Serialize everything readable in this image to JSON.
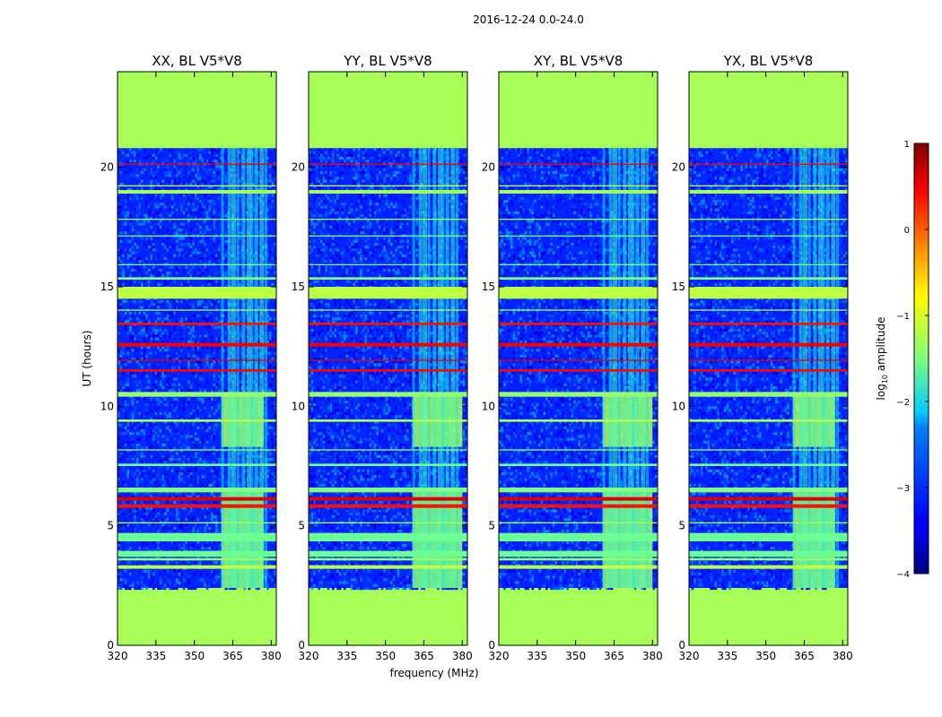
{
  "chart_data": {
    "type": "heatmap",
    "suptitle": "2016-12-24 0.0-24.0",
    "xlabel": "frequency (MHz)",
    "ylabel": "UT (hours)",
    "xlim": [
      320,
      382
    ],
    "ylim": [
      0,
      24
    ],
    "xticks": [
      320,
      335,
      350,
      365,
      380
    ],
    "yticks": [
      0,
      5,
      10,
      15,
      20
    ],
    "data_ut_range": [
      2.4,
      20.8
    ],
    "colorbar": {
      "label_prefix": "log",
      "label_sub": "10",
      "label_suffix": " amplitude",
      "range": [
        -4,
        1
      ],
      "ticks": [
        1,
        0,
        -1,
        -2,
        -3,
        -4
      ],
      "tick_labels": [
        "1",
        "0",
        "−1",
        "−2",
        "−3",
        "−4"
      ],
      "colormap": "jet"
    },
    "no_data_log_value": -1.3,
    "panels": [
      {
        "title": "XX, BL V5*V8",
        "rfi_block_edge_mhz": 360.5,
        "rfi_block_top_mhz": 377
      },
      {
        "title": "YY, BL V5*V8",
        "rfi_block_edge_mhz": 360.5,
        "rfi_block_top_mhz": 380
      },
      {
        "title": "XY, BL V5*V8",
        "rfi_block_edge_mhz": 360.5,
        "rfi_block_top_mhz": 380
      },
      {
        "title": "YX, BL V5*V8",
        "rfi_block_edge_mhz": 360.5,
        "rfi_block_top_mhz": 377
      }
    ],
    "rfi_columns_mhz": [
      361,
      363.5,
      365,
      367,
      369,
      371,
      372.5,
      374,
      376,
      378
    ],
    "flagged_time_bands": [
      {
        "t0": 3.2,
        "t1": 3.35,
        "log": -1.2
      },
      {
        "t0": 3.55,
        "t1": 3.65,
        "log": -1.4
      },
      {
        "t0": 3.7,
        "t1": 3.95,
        "log": -1.6
      },
      {
        "t0": 4.35,
        "t1": 4.7,
        "log": -1.6
      },
      {
        "t0": 5.1,
        "t1": 5.15,
        "log": -1.3
      },
      {
        "t0": 5.75,
        "t1": 5.9,
        "log": 0.3
      },
      {
        "t0": 6.05,
        "t1": 6.2,
        "log": 0.5
      },
      {
        "t0": 6.4,
        "t1": 6.6,
        "log": -1.5
      },
      {
        "t0": 7.5,
        "t1": 7.6,
        "log": -1.6
      },
      {
        "t0": 8.15,
        "t1": 8.2,
        "log": -1.4
      },
      {
        "t0": 9.35,
        "t1": 9.45,
        "log": -1.3
      },
      {
        "t0": 10.4,
        "t1": 10.6,
        "log": -1.4
      },
      {
        "t0": 11.45,
        "t1": 11.55,
        "log": 0.35
      },
      {
        "t0": 11.9,
        "t1": 11.95,
        "log": 0.5
      },
      {
        "t0": 12.5,
        "t1": 12.65,
        "log": 0.4
      },
      {
        "t0": 13.4,
        "t1": 13.5,
        "log": 0.3
      },
      {
        "t0": 14.0,
        "t1": 14.05,
        "log": -1.3
      },
      {
        "t0": 14.5,
        "t1": 15.0,
        "log": -1.2
      },
      {
        "t0": 15.3,
        "t1": 15.4,
        "log": -1.5
      },
      {
        "t0": 15.9,
        "t1": 15.95,
        "log": -1.6
      },
      {
        "t0": 17.1,
        "t1": 17.15,
        "log": -1.6
      },
      {
        "t0": 17.8,
        "t1": 17.85,
        "log": -1.4
      },
      {
        "t0": 18.9,
        "t1": 19.05,
        "log": -1.3
      },
      {
        "t0": 19.2,
        "t1": 19.25,
        "log": -1.2
      },
      {
        "t0": 20.1,
        "t1": 20.15,
        "log": 0.4
      }
    ],
    "rfi_block_time_ranges": [
      {
        "t0": 2.4,
        "t1": 6.4,
        "log": -1.3
      },
      {
        "t0": 8.3,
        "t1": 10.5,
        "log": -1.2
      }
    ]
  }
}
